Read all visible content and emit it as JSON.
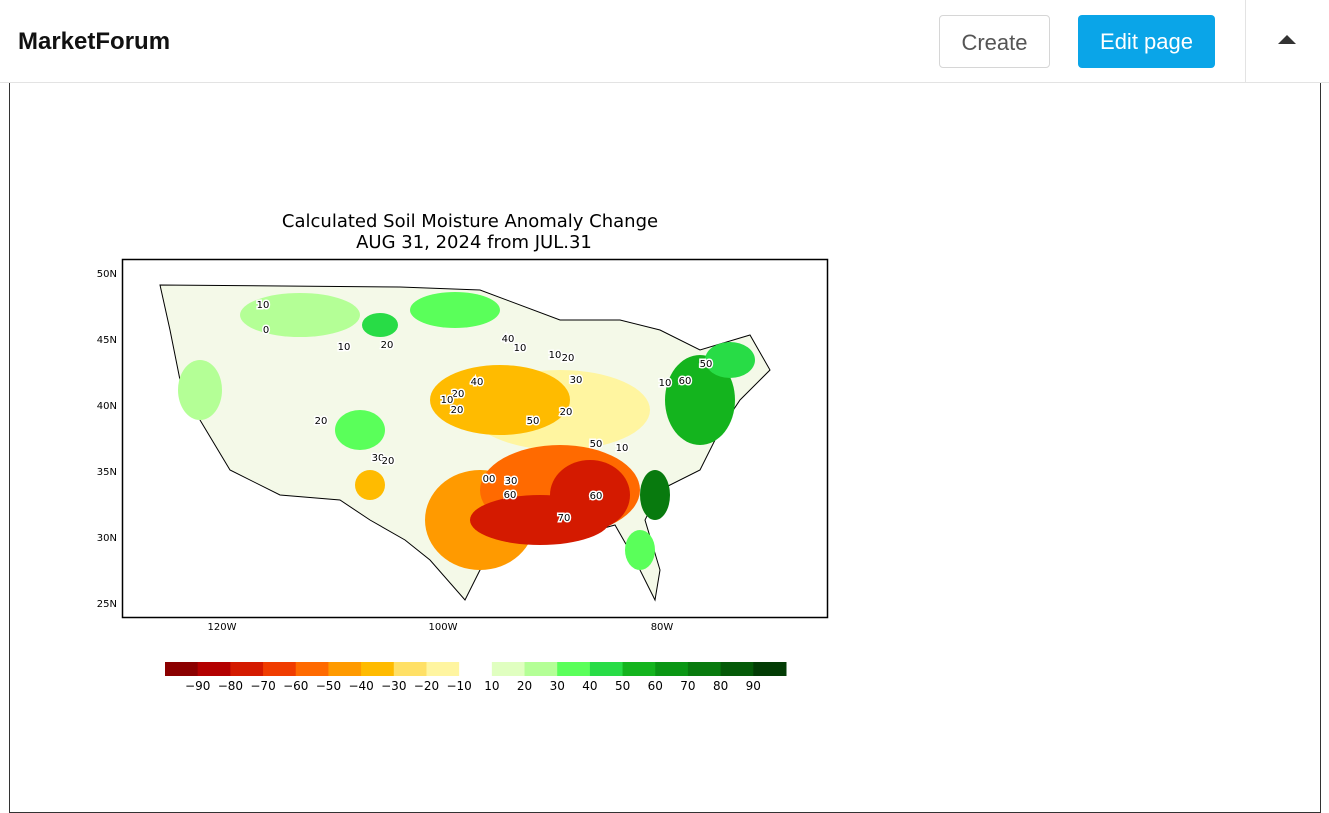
{
  "header": {
    "brand": "MarketForum",
    "buttons": [
      "Create",
      "Edit page"
    ]
  },
  "map": {
    "title": [
      "Calculated Soil Moisture Anomaly Change",
      "AUG 31, 2024 from JUL.31"
    ],
    "lat_labels": [
      "50N",
      "45N",
      "40N",
      "35N",
      "30N",
      "25N"
    ],
    "lon_labels": [
      "120W",
      "100W",
      "80W"
    ],
    "contour_labels": [
      "10",
      "0",
      "10",
      "20",
      "40",
      "10",
      "10",
      "20",
      "20",
      "10",
      "40",
      "20",
      "30",
      "20",
      "50",
      "20",
      "10",
      "60",
      "50",
      "30",
      "50",
      "10",
      "20",
      "00",
      "30",
      "60",
      "60",
      "70"
    ],
    "colorbar": {
      "colors": [
        "#8b0000",
        "#b30000",
        "#d41a00",
        "#f03c00",
        "#ff6a00",
        "#ff9a00",
        "#ffbb00",
        "#ffe066",
        "#fff5a0",
        "#ffffff",
        "#e0ffc0",
        "#b4ff96",
        "#5aff5a",
        "#28dc46",
        "#14b41e",
        "#0a9614",
        "#087a0e",
        "#055a08",
        "#033c05"
      ],
      "labels": [
        "−90",
        "−80",
        "−70",
        "−60",
        "−50",
        "−40",
        "−30",
        "−20",
        "−10",
        "10",
        "20",
        "30",
        "40",
        "50",
        "60",
        "70",
        "80",
        "90"
      ]
    }
  }
}
